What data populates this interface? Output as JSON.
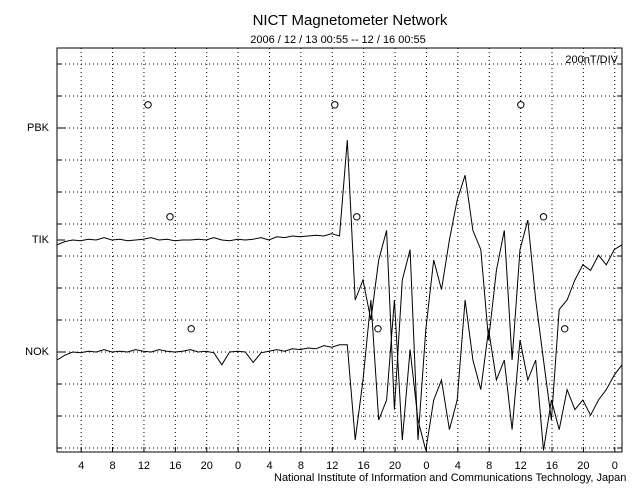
{
  "chart_data": {
    "type": "line",
    "title": "NICT Magnetometer Network",
    "subtitle": "2006 / 12 / 13   00:55 -- 12 / 16   00:55",
    "scale_label": "200nT/DIV",
    "footer": "National Institute of Information and Communications Technology, Japan",
    "xlim": [
      0,
      72
    ],
    "xticks": [
      {
        "value": 3.08,
        "label": "4"
      },
      {
        "value": 7.08,
        "label": "8"
      },
      {
        "value": 11.08,
        "label": "12"
      },
      {
        "value": 15.08,
        "label": "16"
      },
      {
        "value": 19.08,
        "label": "20"
      },
      {
        "value": 23.08,
        "label": "0"
      },
      {
        "value": 27.08,
        "label": "4"
      },
      {
        "value": 31.08,
        "label": "8"
      },
      {
        "value": 35.08,
        "label": "12"
      },
      {
        "value": 39.08,
        "label": "16"
      },
      {
        "value": 43.08,
        "label": "20"
      },
      {
        "value": 47.08,
        "label": "0"
      },
      {
        "value": 51.08,
        "label": "4"
      },
      {
        "value": 55.08,
        "label": "8"
      },
      {
        "value": 59.08,
        "label": "12"
      },
      {
        "value": 63.08,
        "label": "16"
      },
      {
        "value": 67.08,
        "label": "20"
      },
      {
        "value": 71.08,
        "label": "0"
      }
    ],
    "ylim": [
      -25,
      2500
    ],
    "yticks": [
      {
        "value": 2000,
        "label": "PBK"
      },
      {
        "value": 1300,
        "label": "TIK"
      },
      {
        "value": 600,
        "label": "NOK"
      }
    ],
    "ygrid": [
      0,
      200,
      400,
      600,
      800,
      1000,
      1200,
      1400,
      1600,
      1800,
      2000,
      2200,
      2400
    ],
    "grid": true,
    "x": [
      0,
      1,
      2,
      3,
      4,
      5,
      6,
      7,
      8,
      9,
      10,
      11,
      12,
      13,
      14,
      15,
      16,
      17,
      18,
      19,
      20,
      21,
      22,
      23,
      24,
      25,
      26,
      27,
      28,
      29,
      30,
      31,
      32,
      33,
      34,
      35,
      36,
      37,
      38,
      39,
      40,
      41,
      42,
      43,
      44,
      45,
      46,
      47,
      48,
      49,
      50,
      51,
      52,
      53,
      54,
      55,
      56,
      57,
      58,
      59,
      60,
      61,
      62,
      63,
      64,
      65,
      66,
      67,
      68,
      69,
      70,
      71,
      72
    ],
    "series": [
      {
        "name": "TIK",
        "color": "#000000",
        "values": [
          1270,
          1290,
          1300,
          1295,
          1305,
          1300,
          1315,
          1300,
          1305,
          1295,
          1300,
          1305,
          1315,
          1300,
          1305,
          1295,
          1300,
          1300,
          1305,
          1300,
          1315,
          1300,
          1295,
          1305,
          1300,
          1305,
          1315,
          1300,
          1320,
          1315,
          1325,
          1320,
          1325,
          1330,
          1325,
          1340,
          1325,
          1925,
          925,
          1050,
          800,
          1175,
          1360,
          240,
          1050,
          1240,
          50,
          740,
          1175,
          990,
          1300,
          1550,
          1705,
          1360,
          1240,
          675,
          1110,
          1360,
          550,
          1240,
          1425,
          925,
          550,
          175,
          865,
          925,
          1050,
          1145,
          1110,
          1205,
          1145,
          1240,
          1270
        ]
      },
      {
        "name": "NOK",
        "color": "#000000",
        "values": [
          550,
          580,
          600,
          595,
          605,
          600,
          615,
          600,
          605,
          600,
          615,
          605,
          600,
          615,
          605,
          600,
          605,
          615,
          600,
          605,
          595,
          520,
          600,
          605,
          600,
          535,
          595,
          605,
          615,
          605,
          620,
          615,
          625,
          620,
          640,
          630,
          645,
          645,
          50,
          425,
          925,
          175,
          300,
          925,
          50,
          615,
          175,
          -15,
          300,
          425,
          115,
          300,
          925,
          550,
          365,
          740,
          425,
          550,
          115,
          675,
          425,
          550,
          -15,
          300,
          115,
          365,
          240,
          300,
          205,
          300,
          365,
          455,
          520
        ]
      }
    ],
    "markers": {
      "x": [
        11.6,
        35.4,
        59.1,
        14.4,
        38.2,
        62.0,
        17.1,
        40.9,
        64.7
      ],
      "y": [
        2145,
        2145,
        2145,
        1445,
        1445,
        1445,
        745,
        745,
        745
      ]
    }
  }
}
